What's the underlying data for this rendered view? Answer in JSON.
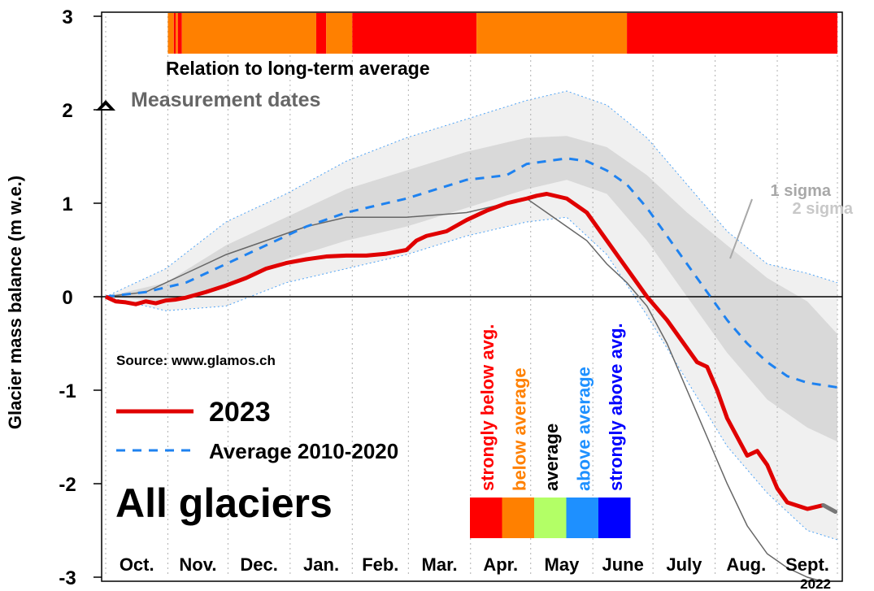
{
  "colors": {
    "strongly_below": "#ff0000",
    "below": "#ff8000",
    "average": "#b3ff66",
    "above": "#1e90ff",
    "strongly_above": "#0000ff",
    "line_2023": "#e00000",
    "line_avg": "#1e82f0",
    "line_2022": "#666666",
    "band_1sigma": "#d9d9d9",
    "band_2sigma": "#f0f0f0"
  },
  "chart_data": {
    "type": "line",
    "ylabel": "Glacier mass balance (m w.e.)",
    "ylim": [
      -3,
      3
    ],
    "yticks": [
      -3,
      -2,
      -1,
      0,
      1,
      2,
      3
    ],
    "xlim_days": [
      0,
      365
    ],
    "months": [
      "Oct.",
      "Nov.",
      "Dec.",
      "Jan.",
      "Feb.",
      "Mar.",
      "Apr.",
      "May",
      "June",
      "July",
      "Aug.",
      "Sept."
    ],
    "month_start_days": [
      0,
      31,
      61,
      92,
      123,
      151,
      182,
      212,
      243,
      273,
      304,
      335
    ],
    "year_label": "2022",
    "source": "Source: www.glamos.ch",
    "title": "All glaciers",
    "legend": {
      "series_2023": "2023",
      "series_avg": "Average 2010-2020",
      "measurement": "Measurement dates"
    },
    "sigma_labels": {
      "one": "1 sigma",
      "two": "2 sigma"
    },
    "relation_bar": {
      "label": "Relation to long-term average",
      "segments": [
        {
          "from": 31,
          "to": 34,
          "cls": "below"
        },
        {
          "from": 34,
          "to": 35,
          "cls": "strongly_below"
        },
        {
          "from": 35,
          "to": 36,
          "cls": "below"
        },
        {
          "from": 36,
          "to": 38,
          "cls": "strongly_below"
        },
        {
          "from": 38,
          "to": 105,
          "cls": "below"
        },
        {
          "from": 105,
          "to": 110,
          "cls": "strongly_below"
        },
        {
          "from": 110,
          "to": 123,
          "cls": "below"
        },
        {
          "from": 123,
          "to": 185,
          "cls": "strongly_below"
        },
        {
          "from": 185,
          "to": 260,
          "cls": "below"
        },
        {
          "from": 260,
          "to": 365,
          "cls": "strongly_below"
        }
      ]
    },
    "color_scale": [
      {
        "label": "strongly below avg.",
        "cls": "strongly_below",
        "text_color": "#ff0000"
      },
      {
        "label": "below average",
        "cls": "below",
        "text_color": "#ff8000"
      },
      {
        "label": "average",
        "cls": "average",
        "text_color": "#000000"
      },
      {
        "label": "above average",
        "cls": "above",
        "text_color": "#1e90ff"
      },
      {
        "label": "strongly above avg.",
        "cls": "strongly_above",
        "text_color": "#0000ff"
      }
    ],
    "series": [
      {
        "name": "2023",
        "x": [
          0,
          5,
          10,
          15,
          20,
          25,
          30,
          35,
          40,
          50,
          60,
          70,
          80,
          90,
          100,
          110,
          120,
          130,
          140,
          150,
          155,
          160,
          170,
          180,
          190,
          200,
          210,
          215,
          220,
          230,
          240,
          250,
          260,
          270,
          280,
          290,
          295,
          300,
          305,
          310,
          320,
          325,
          330,
          335,
          340,
          350,
          358
        ],
        "y": [
          0,
          -0.05,
          -0.06,
          -0.08,
          -0.05,
          -0.07,
          -0.04,
          -0.03,
          -0.01,
          0.05,
          0.12,
          0.2,
          0.3,
          0.36,
          0.4,
          0.43,
          0.44,
          0.44,
          0.46,
          0.5,
          0.6,
          0.65,
          0.7,
          0.82,
          0.92,
          1.0,
          1.05,
          1.08,
          1.1,
          1.05,
          0.9,
          0.6,
          0.3,
          0.0,
          -0.25,
          -0.55,
          -0.7,
          -0.75,
          -1.0,
          -1.3,
          -1.7,
          -1.65,
          -1.8,
          -2.05,
          -2.2,
          -2.27,
          -2.23
        ]
      },
      {
        "name": "Average 2010-2020",
        "x": [
          0,
          20,
          40,
          60,
          80,
          100,
          120,
          150,
          180,
          200,
          210,
          230,
          240,
          250,
          260,
          270,
          280,
          290,
          300,
          310,
          320,
          330,
          340,
          350,
          365
        ],
        "y": [
          0,
          0.05,
          0.15,
          0.35,
          0.55,
          0.75,
          0.9,
          1.05,
          1.25,
          1.3,
          1.42,
          1.48,
          1.45,
          1.35,
          1.2,
          0.95,
          0.65,
          0.35,
          0.05,
          -0.25,
          -0.5,
          -0.7,
          -0.85,
          -0.92,
          -0.97
        ]
      },
      {
        "name": "2022",
        "x": [
          0,
          20,
          40,
          60,
          80,
          100,
          120,
          150,
          180,
          200,
          210,
          220,
          230,
          240,
          250,
          260,
          270,
          280,
          290,
          300,
          310,
          320,
          330,
          340,
          350,
          358
        ],
        "y": [
          0,
          0.05,
          0.25,
          0.45,
          0.6,
          0.75,
          0.85,
          0.85,
          0.9,
          1.0,
          1.05,
          0.9,
          0.75,
          0.6,
          0.35,
          0.15,
          -0.1,
          -0.5,
          -1.0,
          -1.5,
          -2.0,
          -2.45,
          -2.75,
          -2.9,
          -3.0,
          -3.05
        ]
      }
    ],
    "band_x": [
      0,
      30,
      60,
      90,
      120,
      150,
      180,
      210,
      230,
      250,
      270,
      290,
      310,
      330,
      350,
      365
    ],
    "band_1sigma_upper": [
      0,
      0.15,
      0.55,
      0.85,
      1.15,
      1.35,
      1.55,
      1.7,
      1.72,
      1.6,
      1.3,
      0.9,
      0.55,
      0.2,
      -0.05,
      -0.4
    ],
    "band_1sigma_lower": [
      0,
      -0.05,
      0.1,
      0.4,
      0.6,
      0.75,
      0.95,
      1.15,
      1.25,
      1.1,
      0.6,
      0.0,
      -0.6,
      -1.1,
      -1.4,
      -1.55
    ],
    "band_2sigma_upper": [
      0,
      0.3,
      0.8,
      1.1,
      1.45,
      1.7,
      1.9,
      2.1,
      2.2,
      2.05,
      1.7,
      1.2,
      0.7,
      0.35,
      0.25,
      0.15
    ],
    "band_2sigma_lower": [
      0,
      -0.15,
      -0.1,
      0.15,
      0.3,
      0.45,
      0.65,
      0.8,
      0.85,
      0.45,
      -0.2,
      -0.9,
      -1.6,
      -2.1,
      -2.5,
      -2.6
    ]
  }
}
